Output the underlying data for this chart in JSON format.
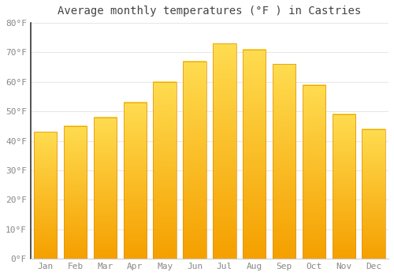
{
  "title": "Average monthly temperatures (°F ) in Castries",
  "months": [
    "Jan",
    "Feb",
    "Mar",
    "Apr",
    "May",
    "Jun",
    "Jul",
    "Aug",
    "Sep",
    "Oct",
    "Nov",
    "Dec"
  ],
  "values": [
    43,
    45,
    48,
    53,
    60,
    67,
    73,
    71,
    66,
    59,
    49,
    44
  ],
  "bar_color_bottom": "#F5A623",
  "bar_color_mid": "#FDD048",
  "bar_color_top": "#FDD048",
  "ylim": [
    0,
    80
  ],
  "ytick_step": 10,
  "background_color": "#ffffff",
  "grid_color": "#e8e8e8",
  "title_fontsize": 10,
  "tick_fontsize": 8,
  "tick_color": "#888888"
}
